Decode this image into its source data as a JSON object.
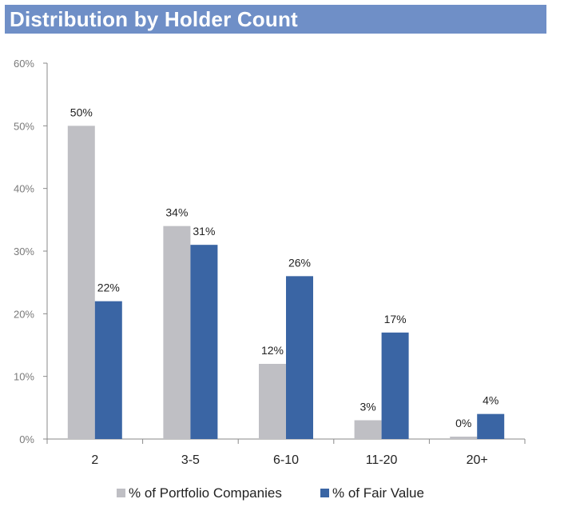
{
  "header": {
    "title": "Distribution by Holder Count"
  },
  "chart_data": {
    "type": "bar",
    "title": "Distribution by Holder Count",
    "categories": [
      "2",
      "3-5",
      "6-10",
      "11-20",
      "20+"
    ],
    "series": [
      {
        "name": "% of Portfolio Companies",
        "values": [
          50,
          34,
          12,
          3,
          0
        ],
        "labels": [
          "50%",
          "34%",
          "12%",
          "3%",
          "0%"
        ],
        "color": "#bfbfc4"
      },
      {
        "name": "% of Fair Value",
        "values": [
          22,
          31,
          26,
          17,
          4
        ],
        "labels": [
          "22%",
          "31%",
          "26%",
          "17%",
          "4%"
        ],
        "color": "#3a65a4"
      }
    ],
    "ylim": [
      0,
      60
    ],
    "yticks": [
      "0%",
      "10%",
      "20%",
      "30%",
      "40%",
      "50%",
      "60%"
    ],
    "xlabel": "",
    "ylabel": "",
    "grid": false,
    "legend": "bottom-center"
  }
}
